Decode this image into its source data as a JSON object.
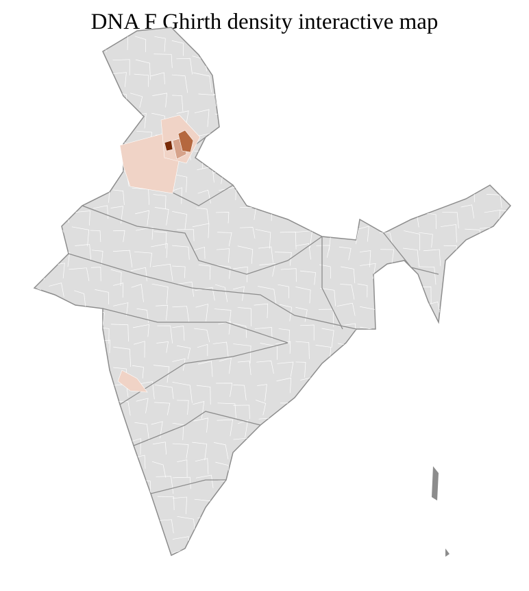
{
  "title": "DNA F Ghirth density interactive map",
  "colors": {
    "land": "#dedede",
    "state_border": "#8c8c8c",
    "district_border": "#ffffff",
    "density_low": "#f0d3c6",
    "density_mid": "#d6a28a",
    "density_high": "#b5683f",
    "density_max": "#7a2a06"
  }
}
